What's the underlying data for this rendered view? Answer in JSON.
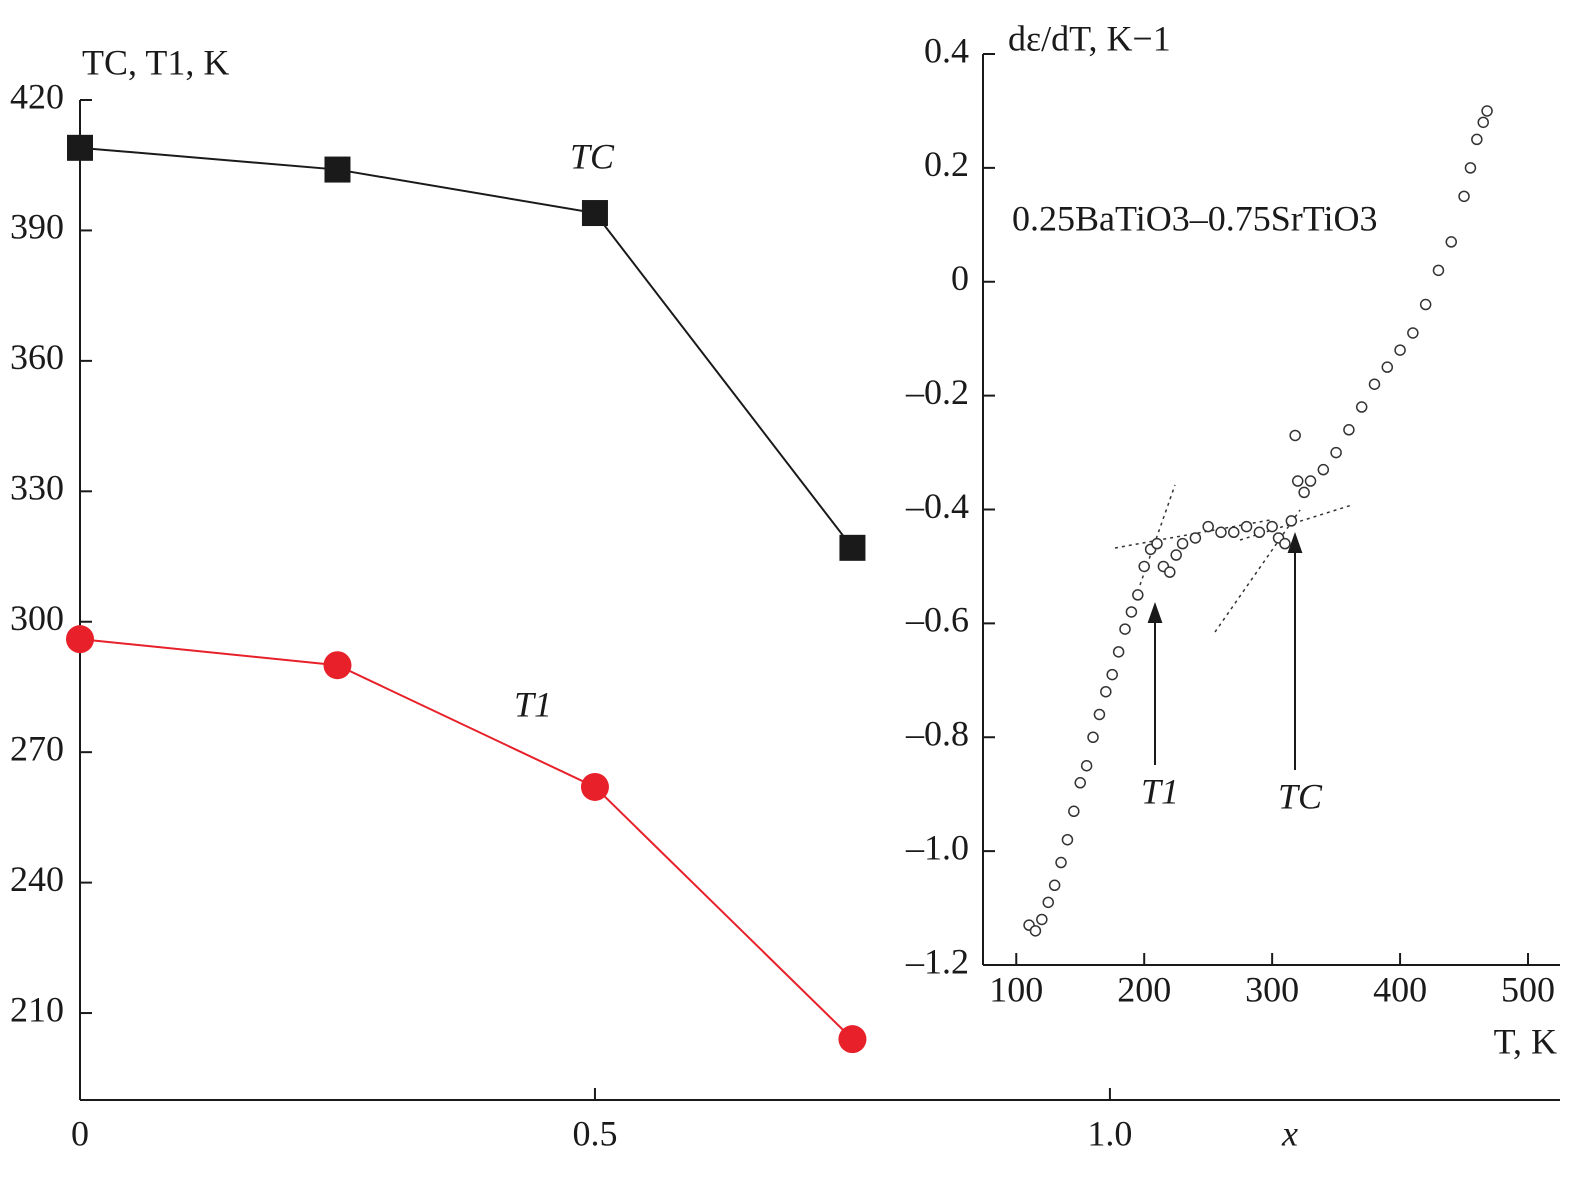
{
  "chart_data": [
    {
      "type": "line",
      "ylabel": "TC, T1, K",
      "xlabel": "x",
      "x": [
        0,
        0.25,
        0.5,
        0.75
      ],
      "series": [
        {
          "name": "TC",
          "color": "#1a1a1a",
          "marker": "square",
          "values": [
            409,
            404,
            394,
            317
          ]
        },
        {
          "name": "T1",
          "color": "#e8202a",
          "marker": "circle",
          "values": [
            296,
            290,
            262,
            204
          ]
        }
      ],
      "xlim": [
        0,
        1.437
      ],
      "ylim": [
        190,
        420
      ],
      "xticks": [
        0,
        0.5,
        {
          "value": 1.0,
          "label": "1.0"
        }
      ],
      "yticks": [
        210,
        240,
        270,
        300,
        330,
        360,
        390,
        420
      ]
    },
    {
      "type": "scatter",
      "ylabel": "dε/dT, K−1",
      "xlabel": "T, K",
      "annotations": [
        "0.25BaTiO3–0.75SrTiO3",
        "T1",
        "TC"
      ],
      "color": "#333333",
      "x": [
        110,
        115,
        120,
        125,
        130,
        135,
        140,
        145,
        150,
        155,
        160,
        165,
        170,
        175,
        180,
        185,
        190,
        195,
        200,
        205,
        210,
        215,
        220,
        225,
        230,
        240,
        250,
        260,
        270,
        280,
        290,
        300,
        305,
        310,
        315,
        318,
        320,
        325,
        330,
        340,
        350,
        360,
        370,
        380,
        390,
        400,
        410,
        420,
        430,
        440,
        450,
        455,
        460,
        465,
        468
      ],
      "values": [
        -1.13,
        -1.14,
        -1.12,
        -1.09,
        -1.06,
        -1.02,
        -0.98,
        -0.93,
        -0.88,
        -0.85,
        -0.8,
        -0.76,
        -0.72,
        -0.69,
        -0.65,
        -0.61,
        -0.58,
        -0.55,
        -0.5,
        -0.47,
        -0.46,
        -0.5,
        -0.51,
        -0.48,
        -0.46,
        -0.45,
        -0.43,
        -0.44,
        -0.44,
        -0.43,
        -0.44,
        -0.43,
        -0.45,
        -0.46,
        -0.42,
        -0.27,
        -0.35,
        -0.37,
        -0.35,
        -0.33,
        -0.3,
        -0.26,
        -0.22,
        -0.18,
        -0.15,
        -0.12,
        -0.09,
        -0.04,
        0.02,
        0.07,
        0.15,
        0.2,
        0.25,
        0.28,
        0.3
      ],
      "xlim": [
        74,
        525
      ],
      "ylim": [
        -1.2,
        0.4
      ],
      "xticks": [
        100,
        200,
        300,
        400,
        500
      ],
      "yticks": [
        0.4,
        0.2,
        0,
        {
          "value": -0.2,
          "label": "–0.2"
        },
        {
          "value": -0.4,
          "label": "–0.4"
        },
        {
          "value": -0.6,
          "label": "–0.6"
        },
        {
          "value": -0.8,
          "label": "–0.8"
        },
        {
          "value": -1.0,
          "label": "–1.0"
        },
        {
          "value": -1.2,
          "label": "–1.2"
        }
      ]
    }
  ]
}
